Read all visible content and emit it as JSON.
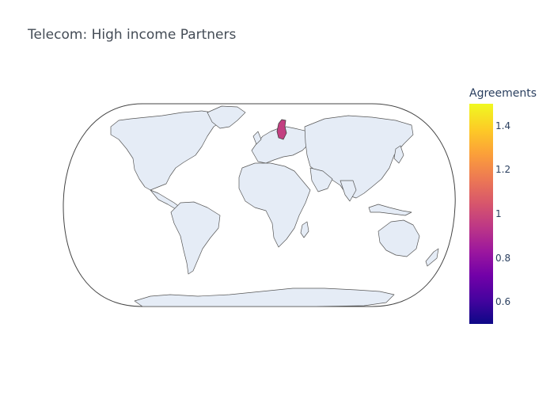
{
  "title": "Telecom: High income Partners",
  "map": {
    "projection": "natural-earth",
    "land_color": "#e5ecf6",
    "outline_color": "#444444",
    "highlighted": [
      {
        "country": "Finland",
        "value": 1,
        "color": "#c23f81"
      }
    ]
  },
  "colorbar": {
    "title": "Agreements",
    "min": 0.5,
    "max": 1.5,
    "ticks": [
      "0.6",
      "0.8",
      "1",
      "1.2",
      "1.4"
    ],
    "tick_values": [
      0.6,
      0.8,
      1,
      1.2,
      1.4
    ],
    "colorscale": [
      "#0d0887",
      "#46039f",
      "#7201a8",
      "#9c179e",
      "#bd3786",
      "#d8576b",
      "#ed7953",
      "#fb9f3a",
      "#fdca26",
      "#f0f921"
    ]
  }
}
